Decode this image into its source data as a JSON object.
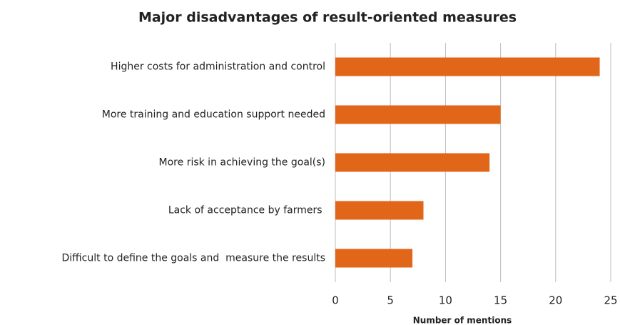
{
  "chart_data": {
    "type": "bar",
    "orientation": "horizontal",
    "title": "Major disadvantages of result-oriented measures",
    "x_label": "Number of mentions",
    "categories": [
      "Higher costs for administration and control",
      "More training and education support needed",
      "More risk in achieving the goal(s)",
      "Lack of acceptance by farmers ",
      "Difficult to define the goals and  measure the results"
    ],
    "values": [
      24,
      15,
      14,
      8,
      7
    ],
    "color": "#e2661a",
    "xlim": [
      0,
      25
    ],
    "xticks": [
      0,
      5,
      10,
      15,
      20,
      25
    ],
    "grid": true
  }
}
